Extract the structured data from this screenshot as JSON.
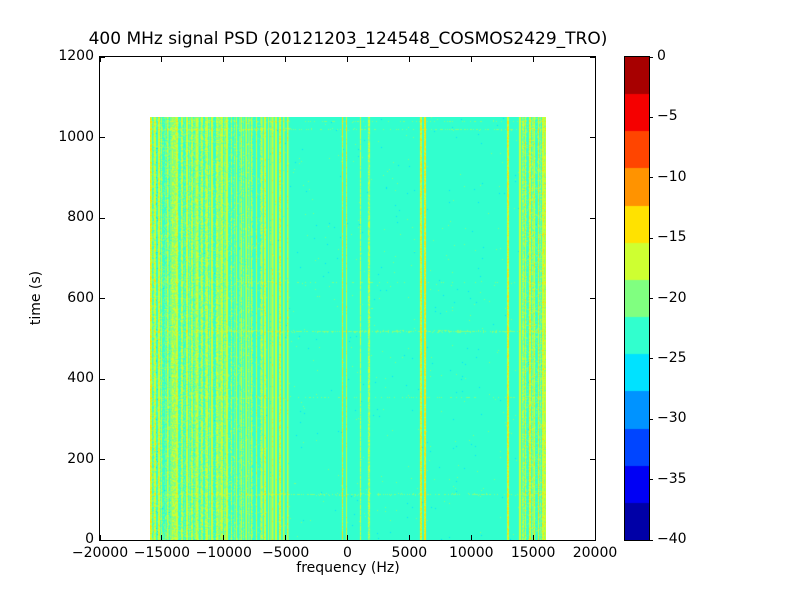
{
  "chart_data": {
    "type": "heatmap",
    "title": "400 MHz signal PSD (20121203_124548_COSMOS2429_TRO)",
    "xlabel": "frequency (Hz)",
    "ylabel": "time (s)",
    "xlim": [
      -20000,
      20000
    ],
    "ylim": [
      0,
      1200
    ],
    "grid": false,
    "xticks": {
      "values": [
        -20000,
        -15000,
        -10000,
        -5000,
        0,
        5000,
        10000,
        15000,
        20000
      ],
      "labels": [
        "−20000",
        "−15000",
        "−10000",
        "−5000",
        "0",
        "5000",
        "10000",
        "15000",
        "20000"
      ]
    },
    "yticks": {
      "values": [
        0,
        200,
        400,
        600,
        800,
        1000,
        1200
      ],
      "labels": [
        "0",
        "200",
        "400",
        "600",
        "800",
        "1000",
        "1200"
      ]
    },
    "colorbar": {
      "min": -40,
      "max": 0,
      "levels": 13,
      "colormap": "jet",
      "position": "right",
      "ticks": {
        "values": [
          0,
          -5,
          -10,
          -15,
          -20,
          -25,
          -30,
          -35,
          -40
        ],
        "labels": [
          "0",
          "−5",
          "−10",
          "−15",
          "−20",
          "−25",
          "−30",
          "−35",
          "−40"
        ]
      }
    },
    "extent": {
      "freq": [
        -16000,
        16000
      ],
      "time": [
        0,
        1050
      ]
    },
    "background_db": -23,
    "pixel_noise_db": 0.9,
    "striped_regions": [
      {
        "freq": [
          -16000,
          -4600
        ],
        "density": 0.55,
        "gradient": true,
        "extra_noise": 1.0
      },
      {
        "freq": [
          14100,
          16000
        ],
        "density": 0.5,
        "gradient": false,
        "extra_noise": 0.8
      }
    ],
    "spectral_lines": [
      {
        "freq": -15900,
        "width": 160,
        "db": -16
      },
      {
        "freq": -15600,
        "width": 120,
        "db": -17
      },
      {
        "freq": -15300,
        "width": 140,
        "db": -16.5
      },
      {
        "freq": -15050,
        "width": 120,
        "db": -17.5
      },
      {
        "freq": -14600,
        "width": 110,
        "db": -17.5
      },
      {
        "freq": -14200,
        "width": 110,
        "db": -18
      },
      {
        "freq": -13800,
        "width": 130,
        "db": -17
      },
      {
        "freq": -13400,
        "width": 110,
        "db": -18
      },
      {
        "freq": -13000,
        "width": 120,
        "db": -17
      },
      {
        "freq": -12600,
        "width": 110,
        "db": -18
      },
      {
        "freq": -12200,
        "width": 120,
        "db": -17.5
      },
      {
        "freq": -11800,
        "width": 110,
        "db": -18
      },
      {
        "freq": -11400,
        "width": 120,
        "db": -17.5
      },
      {
        "freq": -11000,
        "width": 130,
        "db": -17
      },
      {
        "freq": -10600,
        "width": 110,
        "db": -18
      },
      {
        "freq": -10200,
        "width": 120,
        "db": -17.5
      },
      {
        "freq": -9800,
        "width": 130,
        "db": -17
      },
      {
        "freq": -9400,
        "width": 110,
        "db": -18
      },
      {
        "freq": -9000,
        "width": 130,
        "db": -17
      },
      {
        "freq": -8600,
        "width": 110,
        "db": -17.5
      },
      {
        "freq": -8200,
        "width": 120,
        "db": -17
      },
      {
        "freq": -7800,
        "width": 110,
        "db": -17.5
      },
      {
        "freq": -7400,
        "width": 130,
        "db": -16.5
      },
      {
        "freq": -7000,
        "width": 110,
        "db": -17.5
      },
      {
        "freq": -6700,
        "width": 130,
        "db": -16.5
      },
      {
        "freq": -6400,
        "width": 110,
        "db": -17
      },
      {
        "freq": -6100,
        "width": 130,
        "db": -16.5
      },
      {
        "freq": -5800,
        "width": 120,
        "db": -17
      },
      {
        "freq": -5500,
        "width": 140,
        "db": -16
      },
      {
        "freq": -5200,
        "width": 120,
        "db": -17
      },
      {
        "freq": -4900,
        "width": 130,
        "db": -16.5
      },
      {
        "freq": -450,
        "width": 140,
        "db": -15
      },
      {
        "freq": -100,
        "width": 100,
        "db": -16
      },
      {
        "freq": 1000,
        "width": 90,
        "db": -18
      },
      {
        "freq": 1700,
        "width": 90,
        "db": -18.5
      },
      {
        "freq": 5900,
        "width": 110,
        "db": -15.5
      },
      {
        "freq": 6250,
        "width": 140,
        "db": -15
      },
      {
        "freq": 12950,
        "width": 140,
        "db": -15.5
      },
      {
        "freq": 13900,
        "width": 100,
        "db": -17.5
      },
      {
        "freq": 14350,
        "width": 120,
        "db": -16.5
      },
      {
        "freq": 14700,
        "width": 140,
        "db": -16
      },
      {
        "freq": 15050,
        "width": 120,
        "db": -16.5
      },
      {
        "freq": 15400,
        "width": 140,
        "db": -16
      },
      {
        "freq": 15750,
        "width": 130,
        "db": -16.5
      },
      {
        "freq": 15950,
        "width": 120,
        "db": -17
      }
    ],
    "time_rows": [
      {
        "time": 115,
        "boost": 1.3
      },
      {
        "time": 355,
        "boost": 0.9
      },
      {
        "time": 520,
        "boost": 1.6
      },
      {
        "time": 640,
        "boost": 0.8
      },
      {
        "time": 1020,
        "boost": 1.2
      },
      {
        "time": 1040,
        "boost": 1.0
      }
    ]
  }
}
